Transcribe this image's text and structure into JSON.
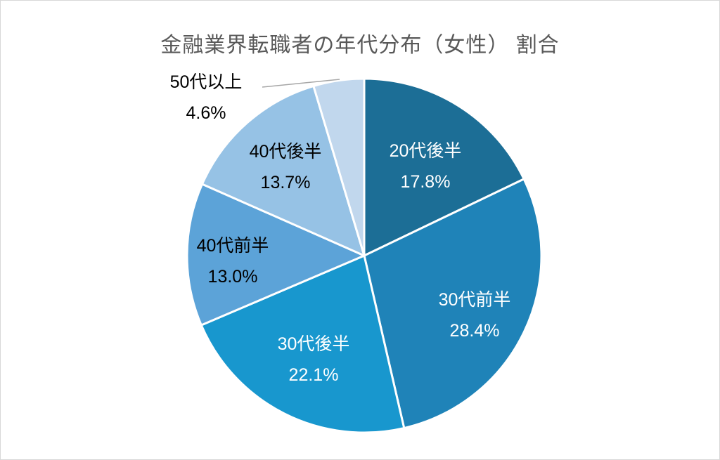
{
  "chart_data": {
    "type": "pie",
    "title": "金融業界転職者の年代分布（女性） 割合",
    "start_angle_deg": 0,
    "direction": "clockwise",
    "legend": "none",
    "labels": "category name + percentage, inside slices (last slice labeled outside with leader line)",
    "title_color": "#595959",
    "slice_border_color": "#FFFFFF",
    "slices": [
      {
        "label": "20代後半",
        "value": 17.8,
        "pct_text": "17.8%",
        "color": "#1C6E96",
        "text_color": "#FFFFFF",
        "label_outside": false
      },
      {
        "label": "30代前半",
        "value": 28.4,
        "pct_text": "28.4%",
        "color": "#1F83B8",
        "text_color": "#FFFFFF",
        "label_outside": false
      },
      {
        "label": "30代後半",
        "value": 22.1,
        "pct_text": "22.1%",
        "color": "#1897CE",
        "text_color": "#FFFFFF",
        "label_outside": false
      },
      {
        "label": "40代前半",
        "value": 13.0,
        "pct_text": "13.0%",
        "color": "#5CA3D8",
        "text_color": "#000000",
        "label_outside": false
      },
      {
        "label": "40代後半",
        "value": 13.7,
        "pct_text": "13.7%",
        "color": "#96C2E5",
        "text_color": "#000000",
        "label_outside": false
      },
      {
        "label": "50代以上",
        "value": 4.6,
        "pct_text": "4.6%",
        "color": "#C1D7ED",
        "text_color": "#000000",
        "label_outside": true
      }
    ]
  }
}
